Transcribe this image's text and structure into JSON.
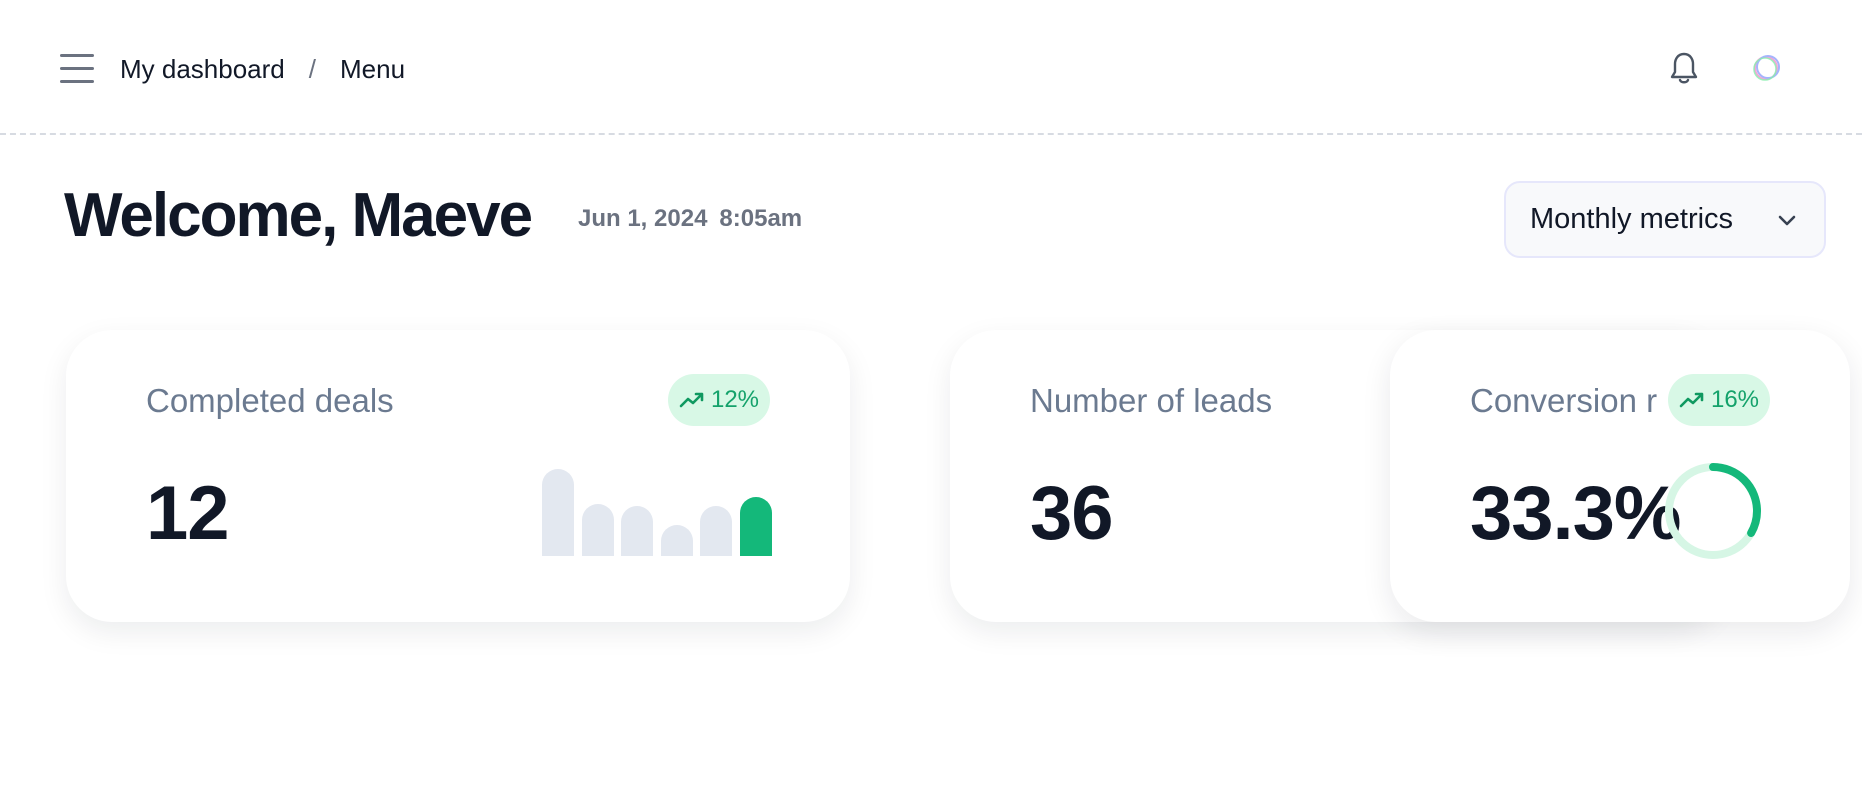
{
  "topbar": {
    "breadcrumb": [
      "My dashboard",
      "Menu"
    ],
    "breadcrumb_separator": "/",
    "icons": [
      "hamburger-menu-icon",
      "bell-icon",
      "avatar-logo-icon"
    ]
  },
  "header": {
    "welcome": "Welcome, Maeve",
    "date": "Jun 1, 2024",
    "time": "8:05am",
    "period_select": "Monthly metrics"
  },
  "cards": [
    {
      "title": "Completed deals",
      "value": "12",
      "change": "12%",
      "trend_icon": "trend-up-icon",
      "bar_levels": [
        0.74,
        0.44,
        0.42,
        0.26,
        0.42,
        0.5
      ],
      "highlight_bar": 5
    },
    {
      "title": "Number of leads",
      "value": "36"
    },
    {
      "title": "Conversion r",
      "value": "33.3%",
      "change": "16%",
      "trend_icon": "trend-up-icon",
      "ring_fraction": 0.333
    }
  ],
  "colors": {
    "accent": "#14b87a",
    "muted_bar": "#e3e8f0",
    "badge_bg": "#d8f8e6",
    "ring_track": "#d6f6e5"
  }
}
